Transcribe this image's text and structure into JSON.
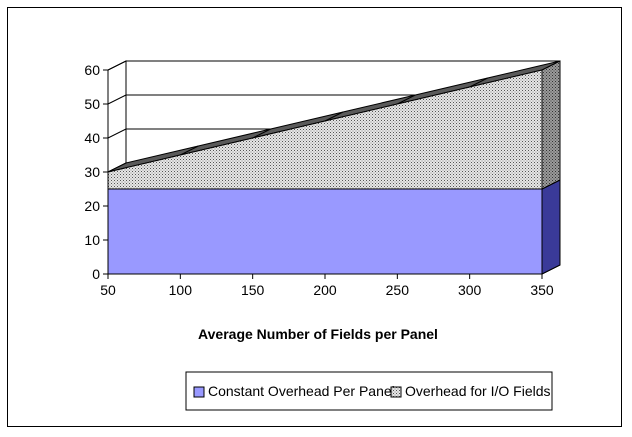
{
  "chart_data": {
    "type": "area",
    "stacked": true,
    "three_d": true,
    "title": "",
    "xlabel": "Average Number of Fields per Panel",
    "ylabel": "",
    "x": [
      50,
      100,
      150,
      200,
      250,
      300,
      350
    ],
    "xlim": [
      50,
      350
    ],
    "ylim": [
      0,
      60
    ],
    "yticks": [
      0,
      10,
      20,
      30,
      40,
      50,
      60
    ],
    "xticks": [
      50,
      100,
      150,
      200,
      250,
      300,
      350
    ],
    "grid": true,
    "legend_position": "bottom",
    "series": [
      {
        "name": "Constant Overhead Per Panel",
        "values": [
          25,
          25,
          25,
          25,
          25,
          25,
          25
        ],
        "color": "#9999ff"
      },
      {
        "name": "Overhead for I/O Fields",
        "values": [
          5,
          10,
          15,
          20,
          25,
          30,
          35
        ],
        "color": "#d4d4d4"
      }
    ]
  }
}
